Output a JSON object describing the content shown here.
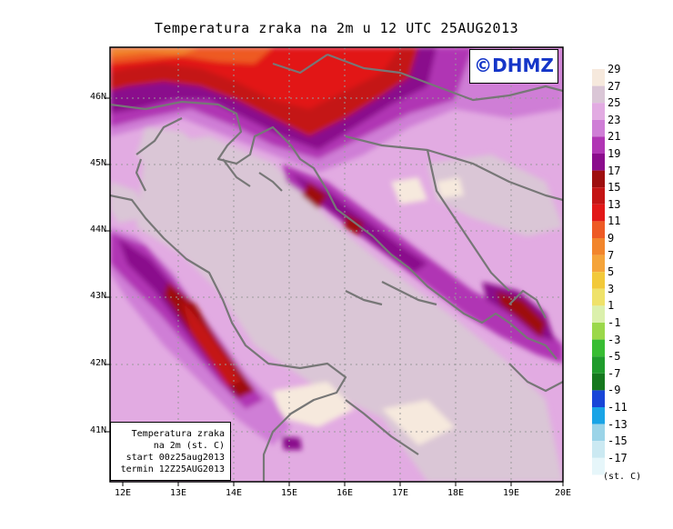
{
  "title": "Temperatura zraka na 2m u 12 UTC 25AUG2013",
  "logo_text": "©DHMZ",
  "info_box": {
    "line1": "Temperatura zraka",
    "line2": "na 2m (st. C)",
    "line3": "start 00z25aug2013",
    "line4": "termin 12Z25AUG2013"
  },
  "lat_labels": [
    "46N",
    "45N",
    "44N",
    "43N",
    "42N",
    "41N"
  ],
  "lon_labels": [
    "12E",
    "13E",
    "14E",
    "15E",
    "16E",
    "17E",
    "18E",
    "19E",
    "20E"
  ],
  "legend": {
    "labels": [
      "29",
      "27",
      "25",
      "23",
      "21",
      "19",
      "17",
      "15",
      "13",
      "11",
      "9",
      "7",
      "5",
      "3",
      "1",
      "-1",
      "-3",
      "-5",
      "-7",
      "-9",
      "-11",
      "-13",
      "-15",
      "-17"
    ],
    "colors": [
      "#f6e9dd",
      "#dac6d6",
      "#e2abe2",
      "#cf7ed6",
      "#b035b4",
      "#8a0c8c",
      "#9e0e0e",
      "#c41414",
      "#e21717",
      "#ee5a24",
      "#f2852c",
      "#f5a43a",
      "#f2c93a",
      "#efe26a",
      "#dbf0ac",
      "#9bd84a",
      "#38bd33",
      "#1f9c2c",
      "#15781e",
      "#1845d8",
      "#1aa4e6",
      "#9bd4e8",
      "#cbe9f2",
      "#e6f6fa"
    ],
    "unit": "(st. C)"
  }
}
